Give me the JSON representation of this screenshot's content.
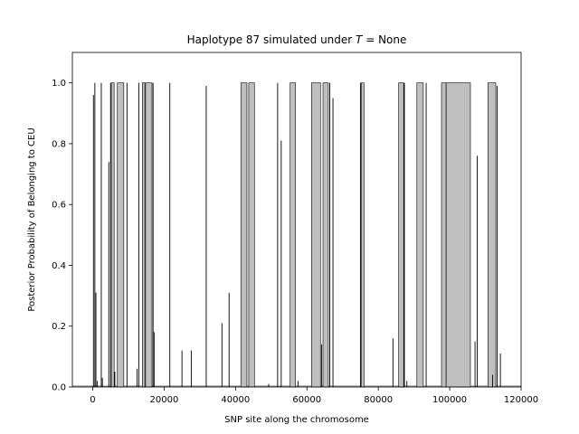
{
  "chart_data": {
    "type": "area",
    "title_prefix": "Haplotype 87 simulated under ",
    "title_var": "T",
    "title_eq": " = ",
    "title_value": "None",
    "xlabel": "SNP site along the chromosome",
    "ylabel": "Posterior Probability of Belonging to CEU",
    "xlim": [
      -5700,
      120000
    ],
    "ylim": [
      0,
      1.1
    ],
    "xticks": [
      0,
      20000,
      40000,
      60000,
      80000,
      100000,
      120000
    ],
    "xtick_labels": [
      "0",
      "20000",
      "40000",
      "60000",
      "80000",
      "100000",
      "120000"
    ],
    "yticks": [
      0.0,
      0.2,
      0.4,
      0.6,
      0.8,
      1.0
    ],
    "ytick_labels": [
      "0.0",
      "0.2",
      "0.4",
      "0.6",
      "0.8",
      "1.0"
    ],
    "grid": false,
    "fill_color": "#bfbfbf",
    "line_color": "#000000",
    "blocks": [
      [
        5200,
        6000
      ],
      [
        6900,
        8700
      ],
      [
        13900,
        14600
      ],
      [
        14800,
        16600
      ],
      [
        41500,
        43200
      ],
      [
        43700,
        45300
      ],
      [
        55300,
        56800
      ],
      [
        61300,
        63800
      ],
      [
        64500,
        66000
      ],
      [
        75200,
        76000
      ],
      [
        85700,
        87100
      ],
      [
        90800,
        92600
      ],
      [
        97700,
        99000
      ],
      [
        99000,
        105800
      ],
      [
        110700,
        112900
      ]
    ],
    "spikes": [
      [
        200,
        0.96
      ],
      [
        600,
        1.0
      ],
      [
        900,
        0.31
      ],
      [
        1300,
        0.02
      ],
      [
        2400,
        1.0
      ],
      [
        2700,
        0.03
      ],
      [
        4500,
        0.74
      ],
      [
        5000,
        1.0
      ],
      [
        6200,
        0.05
      ],
      [
        9600,
        1.0
      ],
      [
        12400,
        0.06
      ],
      [
        12900,
        1.0
      ],
      [
        16900,
        1.0
      ],
      [
        17200,
        0.18
      ],
      [
        21600,
        1.0
      ],
      [
        25000,
        0.12
      ],
      [
        27600,
        0.12
      ],
      [
        31800,
        0.99
      ],
      [
        36200,
        0.21
      ],
      [
        38200,
        0.31
      ],
      [
        49300,
        0.01
      ],
      [
        51800,
        1.0
      ],
      [
        52800,
        0.81
      ],
      [
        57500,
        0.02
      ],
      [
        64100,
        0.14
      ],
      [
        66400,
        1.0
      ],
      [
        67300,
        0.95
      ],
      [
        75000,
        1.0
      ],
      [
        84100,
        0.16
      ],
      [
        87300,
        1.0
      ],
      [
        88000,
        0.02
      ],
      [
        93400,
        1.0
      ],
      [
        107100,
        0.15
      ],
      [
        107700,
        0.76
      ],
      [
        112000,
        0.04
      ],
      [
        113300,
        0.99
      ],
      [
        114200,
        0.11
      ]
    ]
  }
}
